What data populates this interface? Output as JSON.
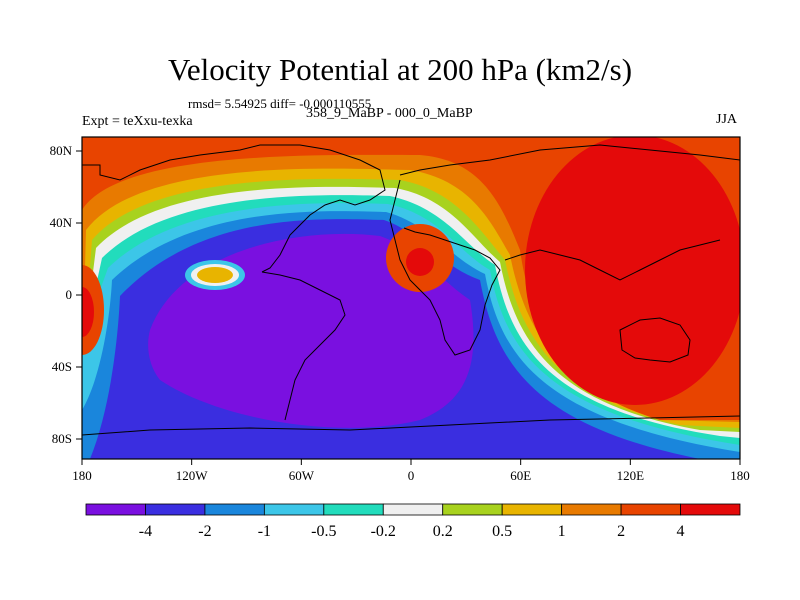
{
  "title": "Velocity Potential at 200 hPa (km2/s)",
  "subtitle": "rmsd= 5.54925 diff= -0.000110555",
  "left_string": "Expt = teXxu-texka",
  "center_string": "358_9_MaBP - 000_0_MaBP",
  "right_string": "JJA",
  "lon_ticks": [
    "180",
    "120W",
    "60W",
    "0",
    "60E",
    "120E",
    "180"
  ],
  "lat_ticks": [
    "80N",
    "40N",
    "0",
    "40S",
    "80S"
  ],
  "colorbar": {
    "labels": [
      "-4",
      "-2",
      "-1",
      "-0.5",
      "-0.2",
      "0.2",
      "0.5",
      "1",
      "2",
      "4"
    ],
    "colors": [
      "#7a10e0",
      "#3a2ee0",
      "#1a86dc",
      "#3cc6e8",
      "#22dcbc",
      "#f0f0f0",
      "#a8d21e",
      "#e8b400",
      "#e87a00",
      "#e84400",
      "#e40a0a"
    ]
  },
  "chart_data": {
    "type": "heatmap",
    "title": "Velocity Potential at 200 hPa (km2/s)",
    "units": "km2/s",
    "season": "JJA",
    "experiment": "teXxu-texka",
    "comparison": "358_9_MaBP - 000_0_MaBP",
    "rmsd": 5.54925,
    "diff": -0.000110555,
    "x_range": [
      -180,
      180
    ],
    "y_range": [
      -90,
      90
    ],
    "levels": [
      -4,
      -2,
      -1,
      -0.5,
      -0.2,
      0.2,
      0.5,
      1,
      2,
      4
    ],
    "features": [
      {
        "name": "negative centre (Pacific/Americas/Atlantic)",
        "lon": -40,
        "lat": -10,
        "value": "< -4"
      },
      {
        "name": "positive centre (Eastern Hemisphere)",
        "lon": 120,
        "lat": 20,
        "value": "> 4"
      },
      {
        "name": "positive cell (NE Africa)",
        "lon": 5,
        "lat": 15,
        "value": "> 4"
      },
      {
        "name": "positive cell (E Pacific)",
        "lon": -110,
        "lat": 10,
        "value": "0.5 to 1"
      },
      {
        "name": "positive cell (dateline)",
        "lon": -180,
        "lat": -5,
        "value": "> 4"
      }
    ]
  }
}
